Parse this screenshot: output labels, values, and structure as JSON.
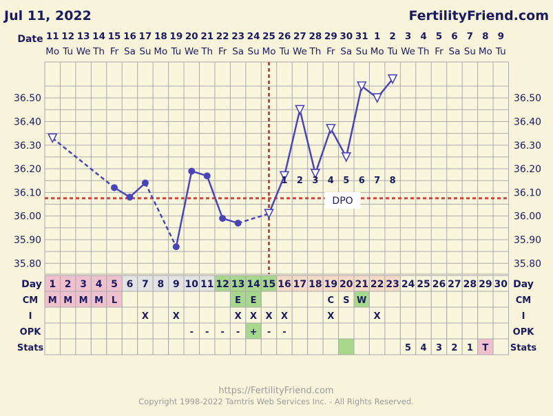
{
  "header": {
    "date": "Jul 11, 2022",
    "brand": "FertilityFriend.com"
  },
  "footer": {
    "url": "https://FertilityFriend.com",
    "copyright": "Copyright 1998-2022 Tamtris Web Services Inc. - All Rights Reserved."
  },
  "colors": {
    "background": "#F8F4DC",
    "line": "#4B43B8",
    "coverline": "#D2413A",
    "grid": "#A9A9A9",
    "mens": "#EFC1CE",
    "fertile": "#A7D88C",
    "luteal": "#F6D9C6",
    "follicular": "#E3E3E3"
  },
  "chart_data": {
    "type": "line",
    "title": "",
    "ylim": [
      35.7,
      36.6
    ],
    "y_ticks": [
      "36.50",
      "36.40",
      "36.30",
      "36.20",
      "36.10",
      "36.00",
      "35.90",
      "35.80"
    ],
    "header_date_label": "Date",
    "dates": [
      "11",
      "12",
      "13",
      "14",
      "15",
      "16",
      "17",
      "18",
      "19",
      "20",
      "21",
      "22",
      "23",
      "24",
      "25",
      "26",
      "27",
      "28",
      "29",
      "30",
      "31",
      "1",
      "2",
      "3",
      "4",
      "5",
      "6",
      "7",
      "8",
      "9"
    ],
    "weekdays": [
      "Mo",
      "Tu",
      "We",
      "Th",
      "Fr",
      "Sa",
      "Su",
      "Mo",
      "Tu",
      "We",
      "Th",
      "Fr",
      "Sa",
      "Su",
      "Mo",
      "Tu",
      "We",
      "Th",
      "Fr",
      "Sa",
      "Su",
      "Mo",
      "Tu",
      "We",
      "Th",
      "Fr",
      "Sa",
      "Su",
      "Mo",
      "Tu"
    ],
    "temperatures": [
      {
        "day": 1,
        "temp": 36.33,
        "marker": "open-triangle"
      },
      {
        "day": 5,
        "temp": 36.12,
        "marker": "dot"
      },
      {
        "day": 6,
        "temp": 36.08,
        "marker": "dot"
      },
      {
        "day": 7,
        "temp": 36.14,
        "marker": "dot"
      },
      {
        "day": 9,
        "temp": 35.87,
        "marker": "dot"
      },
      {
        "day": 10,
        "temp": 36.19,
        "marker": "dot"
      },
      {
        "day": 11,
        "temp": 36.17,
        "marker": "dot"
      },
      {
        "day": 12,
        "temp": 35.99,
        "marker": "dot"
      },
      {
        "day": 13,
        "temp": 35.97,
        "marker": "dot"
      },
      {
        "day": 15,
        "temp": 36.01,
        "marker": "open-triangle"
      },
      {
        "day": 16,
        "temp": 36.17,
        "marker": "open-triangle"
      },
      {
        "day": 17,
        "temp": 36.45,
        "marker": "open-triangle"
      },
      {
        "day": 18,
        "temp": 36.18,
        "marker": "open-triangle"
      },
      {
        "day": 19,
        "temp": 36.37,
        "marker": "open-triangle"
      },
      {
        "day": 20,
        "temp": 36.25,
        "marker": "open-triangle"
      },
      {
        "day": 21,
        "temp": 36.55,
        "marker": "open-triangle"
      },
      {
        "day": 22,
        "temp": 36.5,
        "marker": "open-triangle"
      },
      {
        "day": 23,
        "temp": 36.58,
        "marker": "open-triangle"
      }
    ],
    "dashed_segments": [
      [
        1,
        5
      ],
      [
        7,
        9
      ],
      [
        13,
        15
      ]
    ],
    "coverline_temp": 36.075,
    "ovulation_day": 15,
    "dpo_label": "DPO",
    "dpo_numbers": [
      {
        "day": 16,
        "n": "1"
      },
      {
        "day": 17,
        "n": "2"
      },
      {
        "day": 18,
        "n": "3"
      },
      {
        "day": 19,
        "n": "4"
      },
      {
        "day": 20,
        "n": "5"
      },
      {
        "day": 21,
        "n": "6"
      },
      {
        "day": 22,
        "n": "7"
      },
      {
        "day": 23,
        "n": "8"
      }
    ],
    "day_row_label": "Day",
    "day_numbers": [
      "1",
      "2",
      "3",
      "4",
      "5",
      "6",
      "7",
      "8",
      "9",
      "10",
      "11",
      "12",
      "13",
      "14",
      "15",
      "16",
      "17",
      "18",
      "19",
      "20",
      "21",
      "22",
      "23",
      "24",
      "25",
      "26",
      "27",
      "28",
      "29",
      "30"
    ],
    "rows": [
      {
        "label": "CM",
        "cells": [
          "M",
          "M",
          "M",
          "M",
          "L",
          "",
          "",
          "",
          "",
          "",
          "",
          "",
          "E",
          "E",
          "",
          "",
          "",
          "",
          "C",
          "S",
          "W",
          "",
          "",
          "",
          "",
          "",
          "",
          "",
          "",
          ""
        ]
      },
      {
        "label": "I",
        "cells": [
          "",
          "",
          "",
          "",
          "",
          "",
          "X",
          "",
          "X",
          "",
          "",
          "",
          "X",
          "X",
          "X",
          "X",
          "",
          "",
          "X",
          "",
          "",
          "X",
          "",
          "",
          "",
          "",
          "",
          "",
          "",
          ""
        ]
      },
      {
        "label": "OPK",
        "cells": [
          "",
          "",
          "",
          "",
          "",
          "",
          "",
          "",
          "",
          "-",
          "-",
          "-",
          "-",
          "+",
          "-",
          "-",
          "",
          "",
          "",
          "",
          "",
          "",
          "",
          "",
          "",
          "",
          "",
          "",
          "",
          ""
        ]
      },
      {
        "label": "Stats",
        "cells": [
          "",
          "",
          "",
          "",
          "",
          "",
          "",
          "",
          "",
          "",
          "",
          "",
          "",
          "",
          "",
          "",
          "",
          "",
          "",
          "",
          "",
          "",
          "",
          "5",
          "4",
          "3",
          "2",
          "1",
          "T",
          ""
        ]
      }
    ]
  }
}
